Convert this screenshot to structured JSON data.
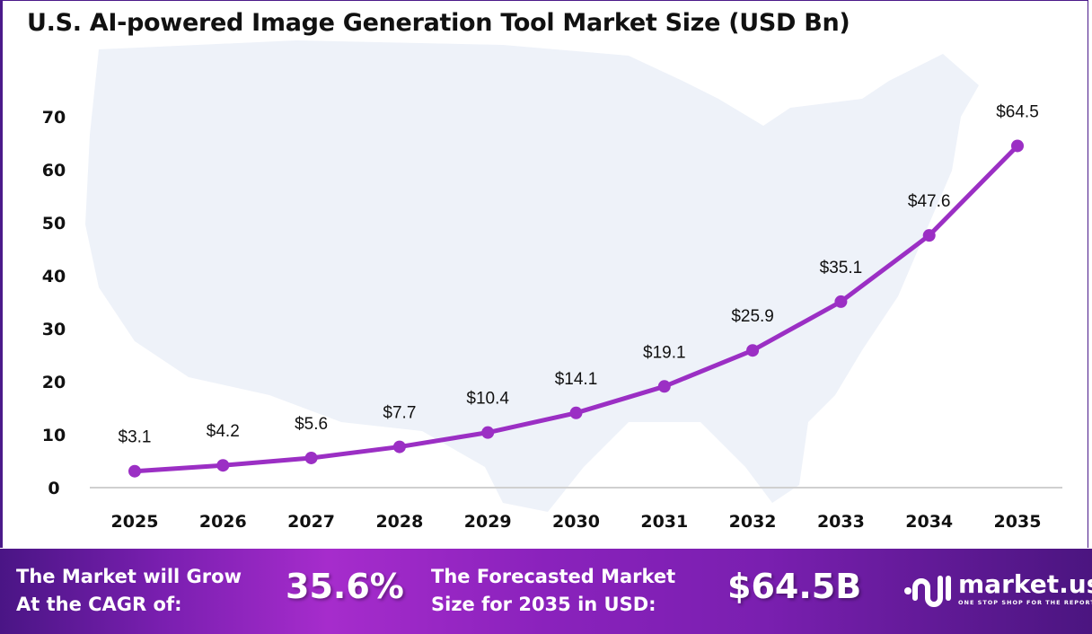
{
  "chart_data": {
    "type": "line",
    "title": "U.S. AI-powered Image Generation Tool Market Size (USD Bn)",
    "categories": [
      "2025",
      "2026",
      "2027",
      "2028",
      "2029",
      "2030",
      "2031",
      "2032",
      "2033",
      "2034",
      "2035"
    ],
    "values": [
      3.1,
      4.2,
      5.6,
      7.7,
      10.4,
      14.1,
      19.1,
      25.9,
      35.1,
      47.6,
      64.5
    ],
    "data_labels": [
      "$3.1",
      "$4.2",
      "$5.6",
      "$7.7",
      "$10.4",
      "$14.1",
      "$19.1",
      "$25.9",
      "$35.1",
      "$47.6",
      "$64.5"
    ],
    "yticks": [
      0,
      10,
      20,
      30,
      40,
      50,
      60,
      70
    ],
    "ylim": [
      0,
      70
    ],
    "grid": false,
    "line_color": "#9b2fc4",
    "background": "U.S. map silhouette"
  },
  "footer": {
    "cagr_label_line1": "The Market will Grow",
    "cagr_label_line2": "At the CAGR of:",
    "cagr_value": "35.6%",
    "forecast_label_line1": "The Forecasted Market",
    "forecast_label_line2": "Size for 2035 in USD:",
    "forecast_value": "$64.5B",
    "logo_name": "market.us",
    "logo_tagline": "ONE STOP SHOP FOR THE REPORTS"
  }
}
